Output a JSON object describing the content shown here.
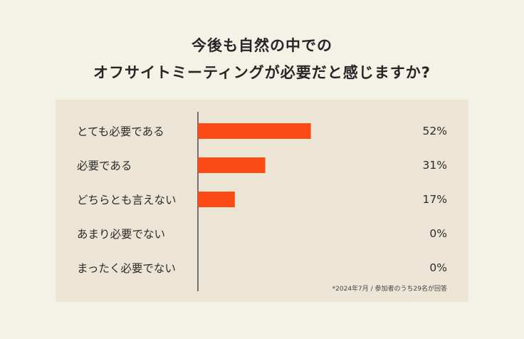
{
  "title_line1": "今後も自然の中での",
  "title_line2": "オフサイトミーティングが必要だと感じますか?",
  "note": "*2024年7月 / 参加者のうち29名が回答",
  "colors": {
    "bar": "#fa4b16",
    "background": "#f4f1e7",
    "panel": "#ece4d5",
    "axis": "#333333"
  },
  "chart_data": {
    "type": "bar",
    "orientation": "horizontal",
    "categories": [
      "とても必要である",
      "必要である",
      "どちらとも言えない",
      "あまり必要でない",
      "まったく必要でない"
    ],
    "values": [
      52,
      31,
      17,
      0,
      0
    ],
    "value_labels": [
      "52%",
      "31%",
      "17%",
      "0%",
      "0%"
    ],
    "unit": "%",
    "xlim": [
      0,
      100
    ],
    "grid": false
  }
}
